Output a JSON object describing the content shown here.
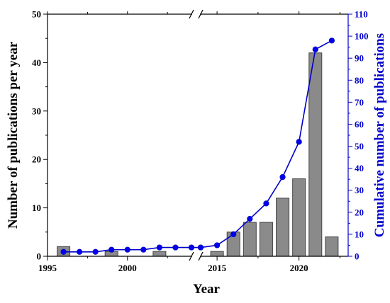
{
  "chart_data": {
    "type": "bar+line",
    "xlabel": "Year",
    "ylabel_left": "Number of publications per year",
    "ylabel_right": "Cumulative number of publications",
    "x_ticks": [
      1995,
      2000,
      2015,
      2020
    ],
    "y_left_ticks": [
      0,
      10,
      20,
      30,
      40,
      50
    ],
    "y_right_ticks": [
      0,
      10,
      20,
      30,
      40,
      50,
      60,
      70,
      80,
      90,
      100,
      110
    ],
    "ylim_left": [
      0,
      50
    ],
    "ylim_right": [
      0,
      110
    ],
    "axis_break": {
      "between": [
        2004,
        2014
      ]
    },
    "series": [
      {
        "name": "",
        "kind": "bar",
        "color": "#8a8a8a",
        "x": [
          1996,
          1999,
          2002,
          2015,
          2016,
          2017,
          2018,
          2019,
          2020,
          2021,
          2022
        ],
        "values": [
          2,
          1,
          1,
          1,
          5,
          7,
          7,
          12,
          16,
          42,
          4
        ]
      },
      {
        "name": "",
        "kind": "line",
        "axis": "right",
        "color": "#0000cc",
        "x": [
          1996,
          1997,
          1998,
          1999,
          2000,
          2001,
          2002,
          2003,
          2004,
          2014,
          2015,
          2016,
          2017,
          2018,
          2019,
          2020,
          2021,
          2022
        ],
        "values": [
          2,
          2,
          2,
          3,
          3,
          3,
          4,
          4,
          4,
          4,
          5,
          10,
          17,
          24,
          36,
          52,
          94,
          98
        ]
      }
    ]
  }
}
